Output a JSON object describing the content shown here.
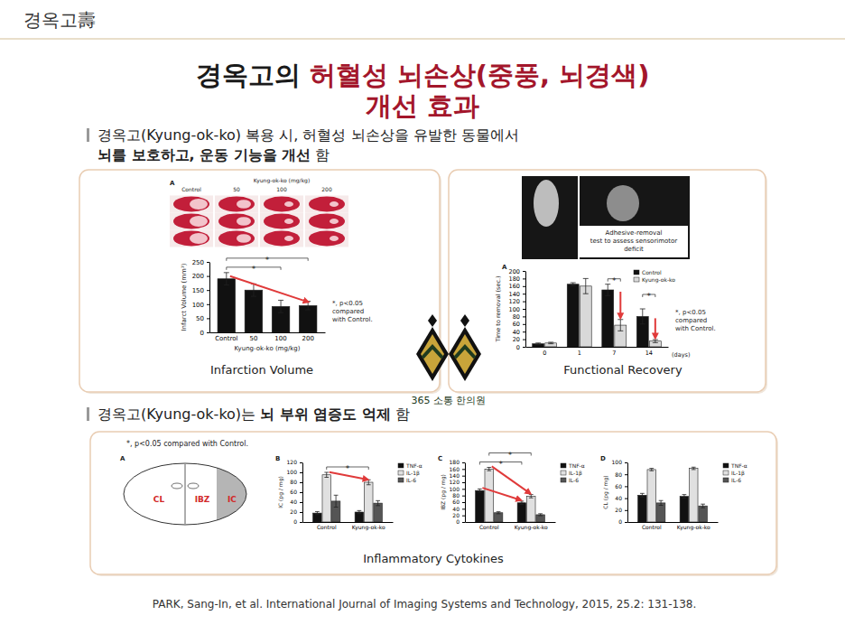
{
  "header": {
    "text": "경옥고壽"
  },
  "title": {
    "lines": [
      [
        {
          "text": "경옥고의 ",
          "color": "#1a1a1a"
        },
        {
          "text": "허혈성 뇌손상(중풍, 뇌경색)",
          "color": "#a3162b"
        }
      ],
      [
        {
          "text": "개선 효과",
          "color": "#a3162b"
        }
      ]
    ]
  },
  "sections": [
    {
      "lines": [
        [
          {
            "text": "경옥고(Kyung-ok-ko) 복용 시, 허혈성 뇌손상을 유발한 동물에서",
            "emphasis": false
          }
        ],
        [
          {
            "text": "뇌를 보호하고, 운동 기능을 개선",
            "emphasis": true
          },
          {
            "text": " 함",
            "emphasis": false
          }
        ]
      ]
    },
    {
      "lines": [
        [
          {
            "text": "경옥고(Kyung-ok-ko)는 ",
            "emphasis": false
          },
          {
            "text": "뇌 부위 염증도 억제",
            "emphasis": true
          },
          {
            "text": " 함",
            "emphasis": false
          }
        ]
      ]
    }
  ],
  "brain_slices": {
    "label": "A",
    "header": "Kyung-ok-ko (mg/kg)",
    "columns": [
      "Control",
      "50",
      "100",
      "200"
    ]
  },
  "test_image": {
    "caption_lines": [
      "Adhesive-removal",
      "test to assess sensorimotor",
      "deficit"
    ]
  },
  "logo": {
    "text": "365 소통 한의원"
  },
  "cytokines": {
    "title": "Inflammatory Cytokines",
    "note": "*, p<0.05 compared with Control.",
    "diagram": {
      "label": "A",
      "regions": [
        "CL",
        "IBZ",
        "IC"
      ]
    }
  },
  "citation": "PARK, Sang-In, et al. International Journal of Imaging Systems and Technology, 2015, 25.2: 131-138.",
  "chart_data": [
    {
      "type": "bar",
      "title": "Infarction Volume",
      "categories": [
        "Control",
        "50",
        "100",
        "200"
      ],
      "values": [
        190,
        150,
        92,
        95
      ],
      "errors": [
        22,
        22,
        22,
        15
      ],
      "color": "#111111",
      "x_label": "Kyung-ok-ko (mg/kg)",
      "y_label": "Infarct Volume (mm³)",
      "ylim": [
        0,
        250
      ],
      "yticks": [
        0,
        50,
        100,
        150,
        200,
        250
      ],
      "significance": [
        {
          "categories": [
            "Control",
            "100"
          ],
          "label": "*"
        },
        {
          "categories": [
            "Control",
            "200"
          ],
          "label": "*"
        }
      ],
      "annotation_lines": [
        "*, p<0.05",
        "compared",
        "with Control."
      ]
    },
    {
      "type": "bar",
      "title": "Functional Recovery",
      "panel_label": "A",
      "categories": [
        "0",
        "1",
        "7",
        "14"
      ],
      "x_label": "(days)",
      "y_label": "Time to removal (sec.)",
      "ylim": [
        0,
        200
      ],
      "yticks": [
        0,
        20,
        40,
        60,
        80,
        100,
        120,
        140,
        160,
        180,
        200
      ],
      "legend": "top-right",
      "series": [
        {
          "name": "Control",
          "color": "#111111",
          "values": [
            8,
            165,
            150,
            80
          ],
          "errors": [
            2,
            4,
            15,
            20
          ]
        },
        {
          "name": "Kyung-ok-ko",
          "color": "#d9d9d9",
          "values": [
            10,
            160,
            57,
            15
          ],
          "errors": [
            2,
            20,
            15,
            4
          ]
        }
      ],
      "significance": [
        {
          "categories": [
            "7"
          ],
          "label": "*"
        },
        {
          "categories": [
            "14"
          ],
          "label": "*"
        }
      ],
      "annotation_lines": [
        "*, p<0.05",
        "compared",
        "with Control."
      ]
    },
    {
      "type": "bar",
      "panel_label": "B",
      "categories": [
        "Control",
        "Kyung-ok-ko"
      ],
      "y_label": "IC (pg / mg)",
      "ylim": [
        0,
        120
      ],
      "yticks": [
        0,
        20,
        40,
        60,
        80,
        100,
        120
      ],
      "legend": "right",
      "series": [
        {
          "name": "TNF-α",
          "color": "#111111",
          "values": [
            18,
            20
          ],
          "errors": [
            3,
            3
          ]
        },
        {
          "name": "IL-1β",
          "color": "#e0e0e0",
          "values": [
            95,
            80
          ],
          "errors": [
            5,
            5
          ]
        },
        {
          "name": "IL-6",
          "color": "#555555",
          "values": [
            42,
            38
          ],
          "errors": [
            12,
            5
          ]
        }
      ],
      "significance": [
        {
          "categories": [
            "Control",
            "Kyung-ok-ko"
          ],
          "series": "IL-1β",
          "label": "*"
        }
      ]
    },
    {
      "type": "bar",
      "panel_label": "C",
      "categories": [
        "Control",
        "Kyung-ok-ko"
      ],
      "y_label": "IBZ (pg / mg)",
      "ylim": [
        0,
        180
      ],
      "yticks": [
        0,
        20,
        40,
        60,
        80,
        100,
        120,
        140,
        160,
        180
      ],
      "legend": "right",
      "series": [
        {
          "name": "TNF-α",
          "color": "#111111",
          "values": [
            95,
            58
          ],
          "errors": [
            5,
            5
          ]
        },
        {
          "name": "IL-1β",
          "color": "#e0e0e0",
          "values": [
            160,
            78
          ],
          "errors": [
            5,
            5
          ]
        },
        {
          "name": "IL-6",
          "color": "#555555",
          "values": [
            28,
            22
          ],
          "errors": [
            3,
            3
          ]
        }
      ],
      "significance": [
        {
          "categories": [
            "Control",
            "Kyung-ok-ko"
          ],
          "series": "TNF-α",
          "label": "*"
        },
        {
          "categories": [
            "Control",
            "Kyung-ok-ko"
          ],
          "series": "IL-1β",
          "label": "*"
        }
      ]
    },
    {
      "type": "bar",
      "panel_label": "D",
      "categories": [
        "Control",
        "Kyung-ok-ko"
      ],
      "y_label": "CL (pg / mg)",
      "ylim": [
        0,
        100
      ],
      "yticks": [
        0,
        20,
        40,
        60,
        80,
        100
      ],
      "legend": "right",
      "series": [
        {
          "name": "TNF-α",
          "color": "#111111",
          "values": [
            45,
            43
          ],
          "errors": [
            3,
            3
          ]
        },
        {
          "name": "IL-1β",
          "color": "#e0e0e0",
          "values": [
            88,
            90
          ],
          "errors": [
            2,
            2
          ]
        },
        {
          "name": "IL-6",
          "color": "#555555",
          "values": [
            32,
            27
          ],
          "errors": [
            4,
            3
          ]
        }
      ]
    }
  ]
}
